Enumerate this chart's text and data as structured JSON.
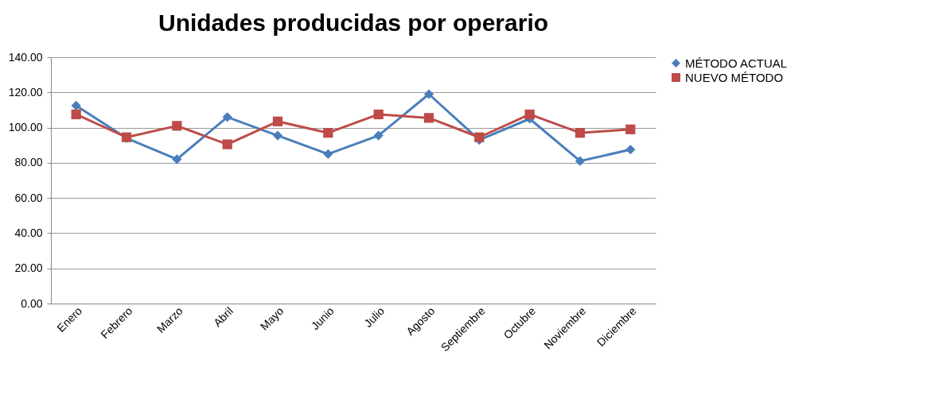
{
  "chart_data": {
    "type": "line",
    "title": "Unidades producidas por operario",
    "categories": [
      "Enero",
      "Febrero",
      "Marzo",
      "Abril",
      "Mayo",
      "Junio",
      "Julio",
      "Agosto",
      "Septiembre",
      "Octubre",
      "Noviembre",
      "Diciembre"
    ],
    "series": [
      {
        "name": "MÉTODO ACTUAL",
        "color": "#4a7ebb",
        "marker": "diamond",
        "values": [
          112.5,
          94,
          82,
          106,
          95.5,
          85,
          95.5,
          119,
          93,
          105,
          81,
          87.5
        ]
      },
      {
        "name": "NUEVO MÉTODO",
        "color": "#be4b48",
        "marker": "square",
        "values": [
          107.5,
          94.5,
          101,
          90.5,
          103.5,
          97,
          107.5,
          105.5,
          94.5,
          107.5,
          97,
          99
        ]
      }
    ],
    "ylim": [
      0,
      140
    ],
    "yticks": [
      {
        "value": 0,
        "label": "0.00"
      },
      {
        "value": 20,
        "label": "20.00"
      },
      {
        "value": 40,
        "label": "40.00"
      },
      {
        "value": 60,
        "label": "60.00"
      },
      {
        "value": 80,
        "label": "80.00"
      },
      {
        "value": 100,
        "label": "100.00"
      },
      {
        "value": 120,
        "label": "120.00"
      },
      {
        "value": 140,
        "label": "140.00"
      }
    ],
    "grid": "y",
    "legend": "right",
    "line_style": "solid"
  }
}
